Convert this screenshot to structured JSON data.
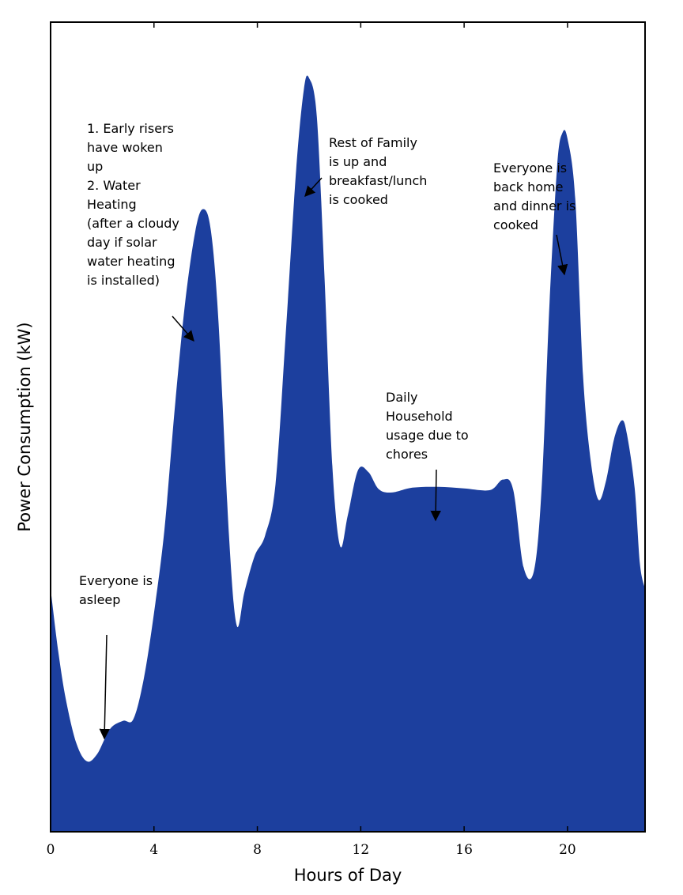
{
  "chart_data": {
    "type": "area",
    "title": "",
    "xlabel": "Hours of Day",
    "ylabel": "Power Consumption (kW)",
    "xlim": [
      0,
      23
    ],
    "ylim": [
      0,
      100
    ],
    "x_ticks": [
      0,
      4,
      8,
      12,
      16,
      20
    ],
    "grid": false,
    "series_color": "#1c3f9e",
    "series": [
      {
        "x": [
          0,
          0.3,
          0.6,
          1.0,
          1.4,
          1.8,
          2.3,
          2.8,
          3.2,
          3.6,
          4.0,
          4.4,
          4.8,
          5.2,
          5.6,
          5.9,
          6.2,
          6.5,
          6.9,
          7.2,
          7.5,
          7.9,
          8.3,
          8.7,
          9.1,
          9.5,
          9.8,
          10.0,
          10.3,
          10.6,
          10.9,
          11.2,
          11.5,
          11.9,
          12.3,
          12.7,
          13.2,
          14.0,
          15.0,
          16.0,
          17.0,
          17.5,
          17.9,
          18.3,
          18.7,
          19.0,
          19.3,
          19.6,
          19.8,
          20.0,
          20.3,
          20.6,
          20.9,
          21.2,
          21.5,
          21.8,
          22.1,
          22.3,
          22.6,
          22.8,
          23.0
        ],
        "values": [
          30,
          22.2,
          16.2,
          10.9,
          8.7,
          9.6,
          12.7,
          13.7,
          13.9,
          18.8,
          27.0,
          37.2,
          52.1,
          65.2,
          74.2,
          76.9,
          74.3,
          62.8,
          36.7,
          25.5,
          29.6,
          34.1,
          36.6,
          42.9,
          61.6,
          81.7,
          91.7,
          93.1,
          88.3,
          68.3,
          45.2,
          35.3,
          39.1,
          44.7,
          44.4,
          42.3,
          41.9,
          42.5,
          42.6,
          42.4,
          42.2,
          43.5,
          42.2,
          32.7,
          32.2,
          42.5,
          65.0,
          82.2,
          86.3,
          85.6,
          78.2,
          56.4,
          45.8,
          41.0,
          43.5,
          48.5,
          50.8,
          49.1,
          42.4,
          33.1,
          30.0
        ]
      }
    ],
    "annotations": [
      {
        "lines": [
          "1. Early risers",
          "have woken",
          "up",
          "2. Water",
          "Heating",
          "(after a cloudy",
          "day if solar",
          "water heating",
          "is installed)"
        ]
      },
      {
        "lines": [
          "Rest of Family",
          "is up and",
          "breakfast/lunch",
          "is cooked"
        ]
      },
      {
        "lines": [
          "Everyone is",
          "back home",
          "and dinner is",
          "cooked"
        ]
      },
      {
        "lines": [
          "Daily",
          "Household",
          "usage due to",
          "chores"
        ]
      },
      {
        "lines": [
          "Everyone is",
          "asleep"
        ]
      }
    ]
  }
}
